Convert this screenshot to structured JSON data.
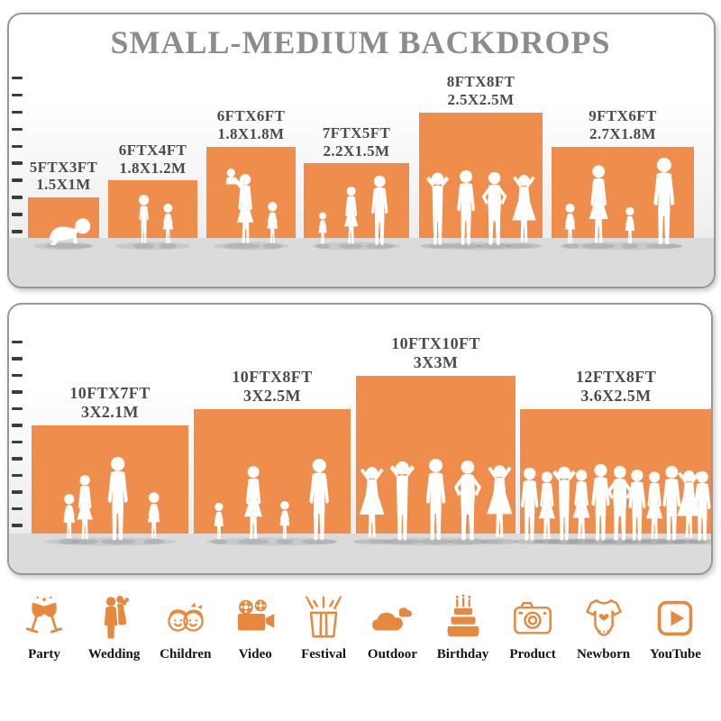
{
  "title": "SMALL-MEDIUM BACKDROPS",
  "colors": {
    "bar_orange": "#EF8D4C",
    "icon_orange": "#E8883C",
    "title_gray": "#8C8C8C",
    "label_gray": "#4B4B4B",
    "tick_dark": "#3C3C3C",
    "floor_gray": "#DBDBDB",
    "panel_border": "#979797",
    "silhouette": "#FFFFFF"
  },
  "chart_data": [
    {
      "type": "bar",
      "panel": "top",
      "title": "SMALL-MEDIUM BACKDROPS",
      "yticks": [
        1,
        2,
        3,
        4,
        5,
        6,
        7,
        8,
        9,
        10
      ],
      "ylim": [
        0,
        10
      ],
      "grid": false,
      "legend": "none",
      "categories": [
        "5FTX3FT",
        "6FTX4FT",
        "6FTX6FT",
        "7FTX5FT",
        "8FTX8FT",
        "9FTX6FT"
      ],
      "values": [
        3,
        4,
        6,
        5,
        8,
        6
      ],
      "widths_ft": [
        5,
        6,
        6,
        7,
        8,
        9
      ],
      "labels_m": [
        "1.5X1M",
        "1.8X1.2M",
        "1.8X1.8M",
        "2.2X1.5M",
        "2.5X2.5M",
        "2.7X1.8M"
      ],
      "figures": [
        [
          "crawling-baby"
        ],
        [
          "boy",
          "girl"
        ],
        [
          "mother-holding-baby",
          "girl"
        ],
        [
          "toddler",
          "woman",
          "man"
        ],
        [
          "man-arms-up",
          "man",
          "man-hands-on-hips",
          "woman-arms-up"
        ],
        [
          "girl",
          "woman",
          "girl",
          "man"
        ]
      ]
    },
    {
      "type": "bar",
      "panel": "bottom",
      "title": "",
      "yticks": [
        1,
        2,
        3,
        4,
        5,
        6,
        7,
        8,
        9,
        10,
        11,
        12
      ],
      "ylim": [
        0,
        12
      ],
      "grid": false,
      "legend": "none",
      "categories": [
        "10FTX7FT",
        "10FTX8FT",
        "10FTX10FT",
        "12FTX8FT"
      ],
      "values": [
        7,
        8,
        10,
        8
      ],
      "widths_ft": [
        10,
        10,
        10,
        12
      ],
      "labels_m": [
        "3X2.1M",
        "3X2.5M",
        "3X3M",
        "3.6X2.5M"
      ],
      "figures": [
        [
          "girl",
          "woman",
          "man",
          "girl"
        ],
        [
          "toddler",
          "woman",
          "toddler",
          "man"
        ],
        [
          "woman-arms-up",
          "man-arms-up",
          "man",
          "man-hands-on-hips",
          "woman-arms-up"
        ],
        [
          "man",
          "woman",
          "man-arms-up",
          "woman",
          "man",
          "man-hands-on-hips",
          "man",
          "woman",
          "man",
          "woman-arms-up",
          "man"
        ]
      ]
    }
  ],
  "icons": [
    {
      "name": "party-icon",
      "label": "Party"
    },
    {
      "name": "wedding-icon",
      "label": "Wedding"
    },
    {
      "name": "children-icon",
      "label": "Children"
    },
    {
      "name": "video-icon",
      "label": "Video"
    },
    {
      "name": "festival-icon",
      "label": "Festival"
    },
    {
      "name": "outdoor-icon",
      "label": "Outdoor"
    },
    {
      "name": "birthday-icon",
      "label": "Birthday"
    },
    {
      "name": "product-icon",
      "label": "Product"
    },
    {
      "name": "newborn-icon",
      "label": "Newborn"
    },
    {
      "name": "youtube-icon",
      "label": "YouTube"
    }
  ]
}
